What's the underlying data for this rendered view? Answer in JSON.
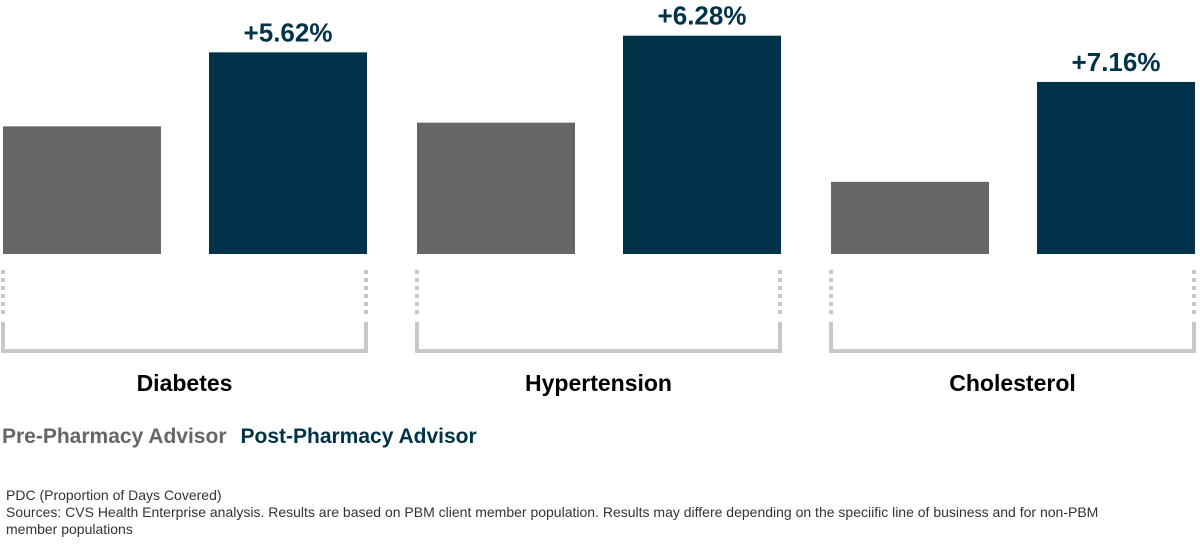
{
  "chart_data": {
    "type": "bar",
    "categories": [
      "Diabetes",
      "Hypertension",
      "Cholesterol"
    ],
    "series": [
      {
        "name": "Pre-Pharmacy Advisor",
        "color": "#666666",
        "values": [
          0.69,
          0.71,
          0.39
        ]
      },
      {
        "name": "Post-Pharmacy Advisor",
        "color": "#003349",
        "values": [
          1.09,
          1.18,
          0.93
        ]
      }
    ],
    "data_labels": [
      "+5.62%",
      "+6.28%",
      "+7.16%"
    ],
    "y_axis_visible": false,
    "grid": false,
    "legend_placement": "bottom-left"
  },
  "legend": {
    "pre_label": "Pre-Pharmacy Advisor",
    "post_label": "Post-Pharmacy Advisor",
    "pre_color": "#666666",
    "post_color": "#003349"
  },
  "footnote": {
    "line1": "PDC (Proportion of Days Covered)",
    "line2": "Sources: CVS Health Enterprise analysis. Results are based on PBM client member population. Results may differe depending on the speciific line of business and for non-PBM member populations"
  },
  "colors": {
    "bracket": "#c8c8c8",
    "label_text": "#003349"
  }
}
